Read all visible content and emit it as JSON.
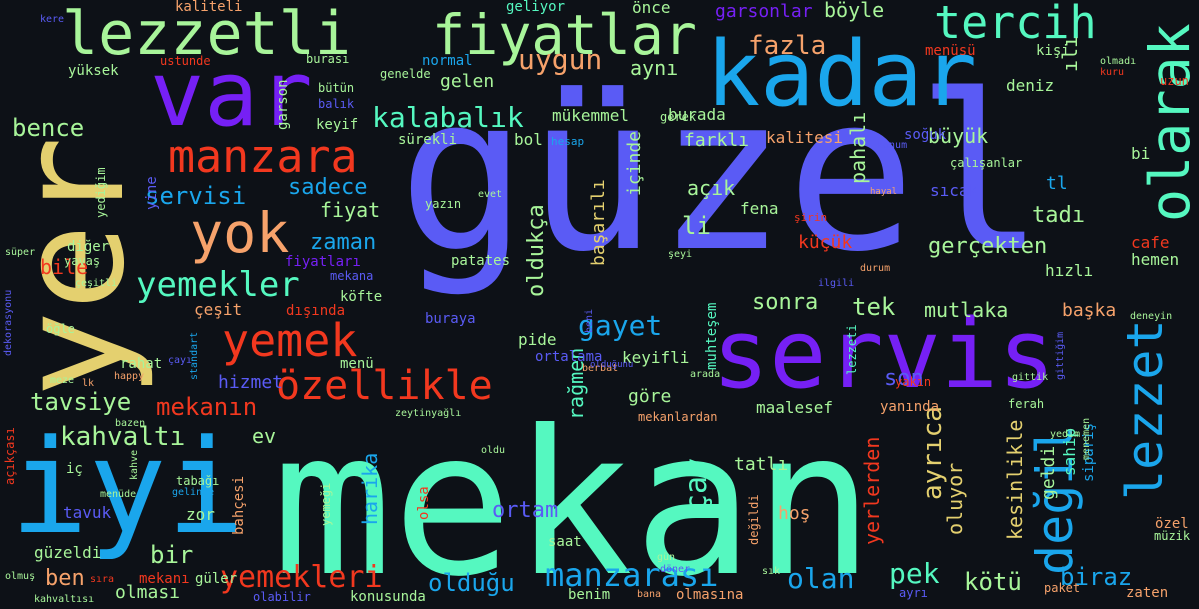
{
  "palette": {
    "background": "#0d1117",
    "blue": "#1aa6ec",
    "indigo": "#5a5bf5",
    "violet": "#7620f5",
    "mint": "#55f8c0",
    "green": "#a8f59a",
    "yellow": "#e4d06f",
    "orange": "#f6a26b",
    "red": "#f2381f"
  },
  "words": [
    "güzel",
    "mekan",
    "yer",
    "servis",
    "kadar",
    "var",
    "iyi",
    "lezzetli",
    "fiyatlar",
    "olarak",
    "tercih",
    "manzara",
    "yok",
    "yemek",
    "özellikle",
    "lezzet",
    "değil",
    "yemekler",
    "kalabalık",
    "uygun",
    "gayet",
    "manzarası",
    "yemekleri",
    "olan",
    "biraz",
    "olduğu",
    "kahvaltı",
    "mekanın",
    "tavsiye",
    "bence",
    "servisi",
    "sadece",
    "fiyat",
    "zaman",
    "gerçekten",
    "küçük",
    "fazla",
    "aynı",
    "gelen",
    "büyük",
    "böyle",
    "ortam",
    "oldukça",
    "başarılı",
    "açık",
    "li",
    "içinde",
    "pahalı",
    "tek",
    "sonra",
    "mutlaka",
    "son",
    "ayrıca",
    "kötü",
    "pek",
    "ben",
    "bir",
    "bile",
    "yine",
    "harika",
    "rağmen",
    "çay",
    "yerlerden",
    "kesinlikle",
    "oluyor",
    "geldi",
    "sahip",
    "sipariş",
    "tadı",
    "hızlı",
    "hemen",
    "cafe",
    "başka",
    "mükemmel",
    "burada",
    "farklı",
    "kalitesi",
    "soğuk",
    "sıcak",
    "fena",
    "tl",
    "bi",
    "deniz",
    "ılı",
    "garsonlar",
    "önce",
    "menüsü",
    "kişi",
    "olmadı",
    "kuru",
    "uzun",
    "kere",
    "kaliteli",
    "geliyor",
    "ustunde",
    "yüksek",
    "garson",
    "burası",
    "genelde",
    "normal",
    "bütün",
    "balık",
    "keyif",
    "sürekli",
    "hesap",
    "bol",
    "gerek",
    "konum",
    "çalışanlar",
    "evet",
    "yazın",
    "hayal",
    "şirin",
    "şeyi",
    "patates",
    "diğer",
    "yavaş",
    "fiyatları",
    "mekana",
    "köfte",
    "dışında",
    "çeşit",
    "pide",
    "ortalama",
    "keyifli",
    "menü",
    "rahat",
    "hizmet",
    "muhteşem",
    "buraya",
    "göre",
    "maalesef",
    "mekanlardan",
    "yanında",
    "yakın",
    "lezzeti",
    "arada",
    "berbat",
    "ferah",
    "gittik",
    "gittiğim",
    "deneyin",
    "yediğim",
    "süper",
    "çeşitli",
    "dekorasyonu",
    "öğle",
    "standart",
    "meze",
    "lk",
    "happy",
    "çayı",
    "beni",
    "olduğunu",
    "durum",
    "ilgili",
    "ev",
    "zeytinyağlı",
    "bazen",
    "tabağı",
    "kahve",
    "gelince",
    "menüde",
    "iç",
    "tavuk",
    "zor",
    "bahçesi",
    "yemeği",
    "olsa",
    "tatlı",
    "hoş",
    "oldu",
    "yedim",
    "menemen",
    "özel",
    "değildi",
    "döner",
    "gün",
    "saat",
    "müzik",
    "açıkçası",
    "güzeldi",
    "olmuş",
    "sıra",
    "kahvaltısı",
    "mekanı",
    "olması",
    "güler",
    "olabilir",
    "konusunda",
    "benim",
    "bana",
    "olmasına",
    "ayrı",
    "sık",
    "paket",
    "zaten"
  ]
}
